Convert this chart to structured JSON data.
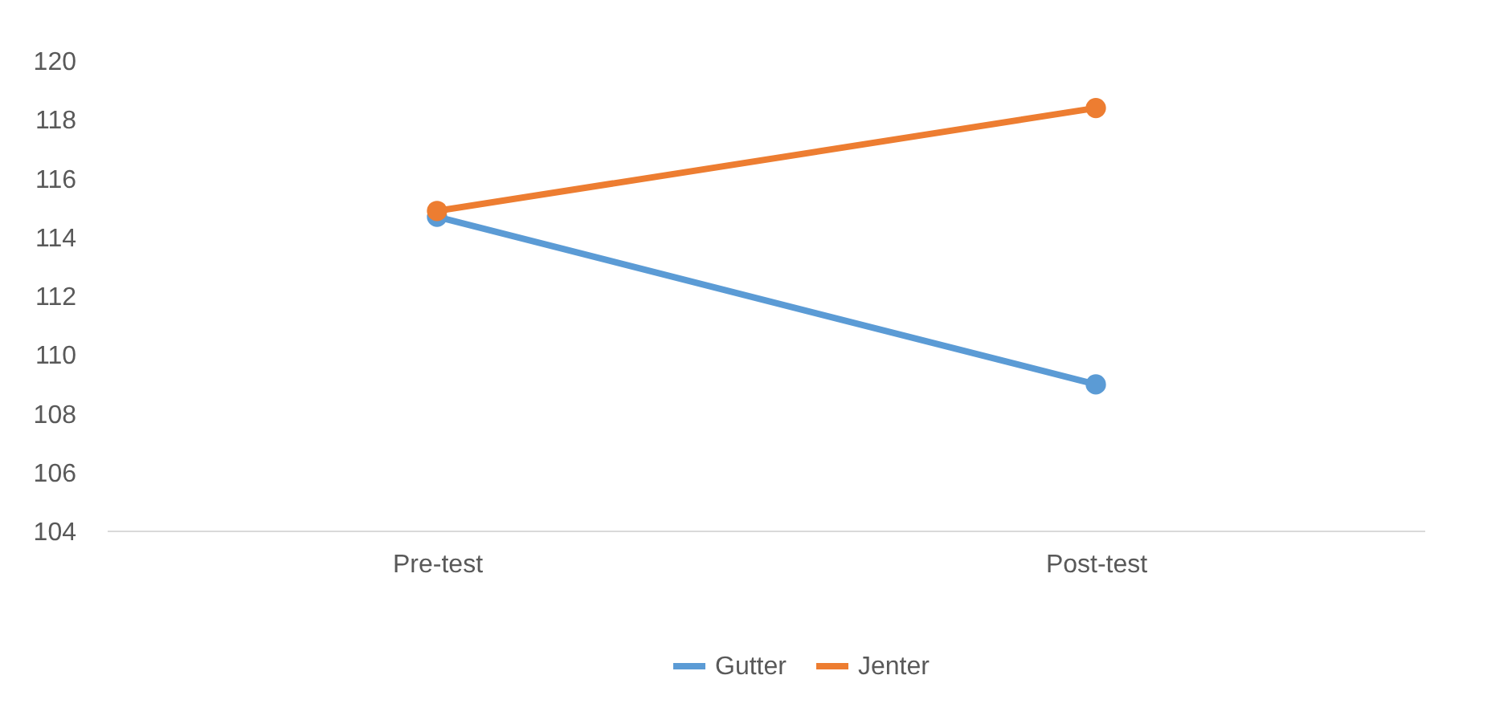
{
  "chart_data": {
    "type": "line",
    "categories": [
      "Pre-test",
      "Post-test"
    ],
    "series": [
      {
        "name": "Gutter",
        "color": "#5b9bd5",
        "values": [
          114.7,
          109.0
        ]
      },
      {
        "name": "Jenter",
        "color": "#ed7d31",
        "values": [
          114.9,
          118.4
        ]
      }
    ],
    "ylim": [
      104,
      120
    ],
    "yticks": [
      104,
      106,
      108,
      110,
      112,
      114,
      116,
      118,
      120
    ],
    "grid": false,
    "legend": "bottom",
    "marker": "circle",
    "line_style": "solid"
  }
}
